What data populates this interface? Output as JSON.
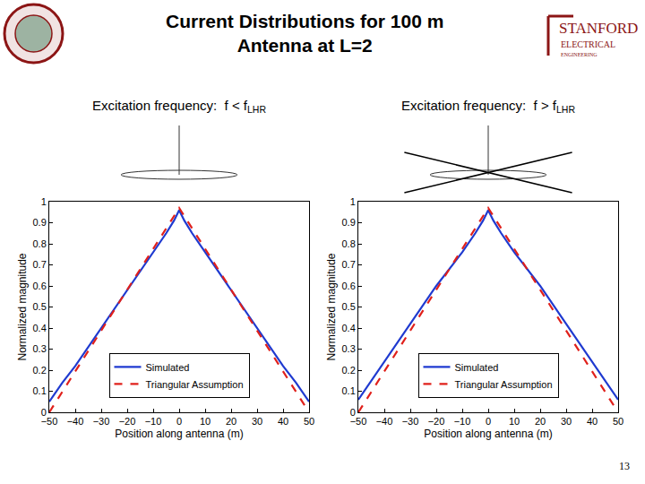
{
  "title": [
    "Current Distributions for 100 m",
    "Antenna at L=2"
  ],
  "logo": [
    "STANFORD",
    "ELECTRICAL",
    "ENGINEERING"
  ],
  "page_number": 13,
  "chart_data": [
    {
      "type": "line",
      "subtitle": {
        "text": "Excitation frequency:  f < f",
        "subscript": "LHR"
      },
      "x_label": "Position along antenna (m)",
      "y_label": "Normalized magnitude",
      "xlim": [
        -50,
        50
      ],
      "ylim": [
        0,
        1
      ],
      "xticks": [
        {
          "value": -50,
          "label": "−50"
        },
        {
          "value": -40,
          "label": "−40"
        },
        {
          "value": -30,
          "label": "−30"
        },
        {
          "value": -20,
          "label": "−20"
        },
        {
          "value": -10,
          "label": "−10"
        },
        0,
        10,
        20,
        30,
        40,
        50
      ],
      "yticks": [
        0,
        0.1,
        0.2,
        0.3,
        0.4,
        0.5,
        0.6,
        0.7,
        0.8,
        0.9,
        1
      ],
      "grid": false,
      "legend": "lower center",
      "series": [
        {
          "name": "Simulated",
          "color": "#1f3ad0",
          "line_style": "solid",
          "x": [
            -50,
            -45,
            -40,
            -30,
            -20,
            -10,
            -5,
            -2,
            0,
            2,
            5,
            10,
            20,
            30,
            40,
            45,
            50
          ],
          "values": [
            0.05,
            0.14,
            0.22,
            0.4,
            0.58,
            0.76,
            0.85,
            0.91,
            0.96,
            0.91,
            0.85,
            0.76,
            0.58,
            0.4,
            0.22,
            0.14,
            0.05
          ]
        },
        {
          "name": "Triangular Assumption",
          "color": "#e0201b",
          "line_style": "dash",
          "x": [
            -50,
            0,
            50
          ],
          "values": [
            0,
            0.97,
            0
          ]
        }
      ]
    },
    {
      "type": "line",
      "subtitle": {
        "text": "Excitation frequency:  f > f",
        "subscript": "LHR"
      },
      "x_label": "Position along antenna (m)",
      "y_label": "Normalized magnitude",
      "xlim": [
        -50,
        50
      ],
      "ylim": [
        0,
        1
      ],
      "xticks": [
        {
          "value": -50,
          "label": "−50"
        },
        {
          "value": -40,
          "label": "−40"
        },
        {
          "value": -30,
          "label": "−30"
        },
        {
          "value": -20,
          "label": "−20"
        },
        {
          "value": -10,
          "label": "−10"
        },
        0,
        10,
        20,
        30,
        40,
        50
      ],
      "yticks": [
        0,
        0.1,
        0.2,
        0.3,
        0.4,
        0.5,
        0.6,
        0.7,
        0.8,
        0.9,
        1
      ],
      "grid": false,
      "legend": "lower center",
      "series": [
        {
          "name": "Simulated",
          "color": "#1f3ad0",
          "line_style": "solid",
          "x": [
            -50,
            -45,
            -40,
            -30,
            -20,
            -10,
            -5,
            -2,
            0,
            2,
            5,
            10,
            20,
            30,
            40,
            45,
            50
          ],
          "values": [
            0.06,
            0.15,
            0.24,
            0.42,
            0.6,
            0.76,
            0.85,
            0.91,
            0.96,
            0.91,
            0.85,
            0.76,
            0.6,
            0.42,
            0.24,
            0.15,
            0.06
          ]
        },
        {
          "name": "Triangular Assumption",
          "color": "#e0201b",
          "line_style": "dash",
          "x": [
            -50,
            0,
            50
          ],
          "values": [
            0,
            0.97,
            0
          ]
        }
      ]
    }
  ]
}
